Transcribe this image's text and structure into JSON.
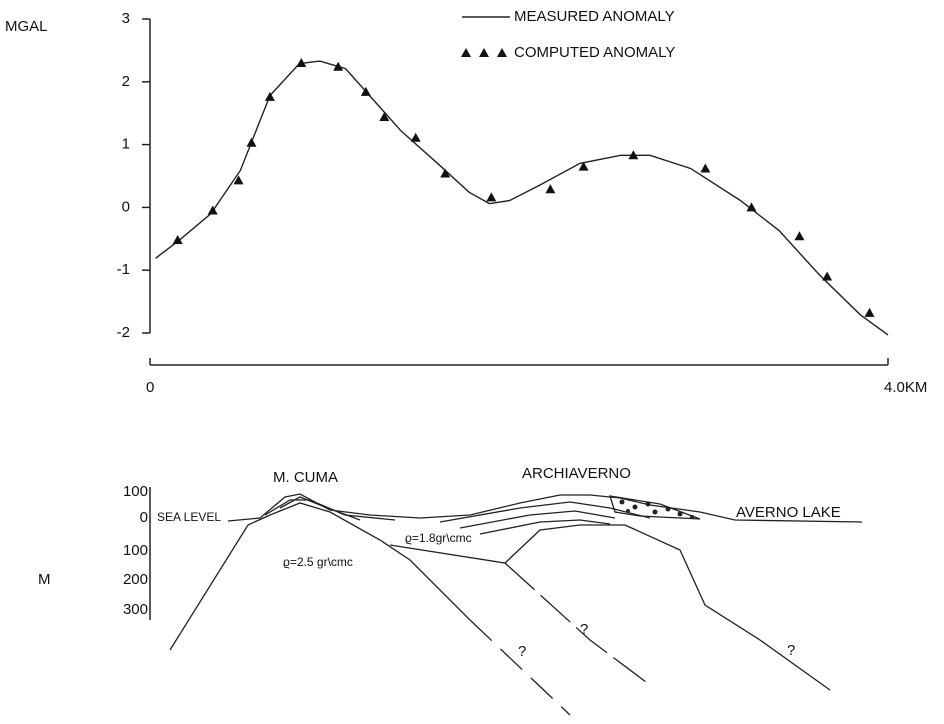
{
  "chart_data": {
    "type": "line",
    "y_label": "MGAL",
    "xlim": [
      0,
      4
    ],
    "xticks": [
      0,
      {
        "value": 4,
        "label": "4.0KM"
      }
    ],
    "ylim": [
      -2,
      3
    ],
    "yticks": [
      3,
      2,
      1,
      0,
      -1,
      -2
    ],
    "series": [
      {
        "name": "MEASURED ANOMALY",
        "color": "#222222",
        "style": "line",
        "x": [
          0.03,
          0.16,
          0.33,
          0.49,
          0.65,
          0.81,
          0.92,
          1.06,
          1.19,
          1.36,
          1.57,
          1.73,
          1.84,
          1.95,
          2.11,
          2.33,
          2.55,
          2.71,
          2.93,
          3.2,
          3.41,
          3.63,
          3.85,
          4.0
        ],
        "values": [
          -0.81,
          -0.52,
          -0.1,
          0.59,
          1.78,
          2.29,
          2.33,
          2.21,
          1.78,
          1.22,
          0.67,
          0.24,
          0.06,
          0.11,
          0.35,
          0.7,
          0.83,
          0.83,
          0.62,
          0.11,
          -0.37,
          -1.08,
          -1.71,
          -2.03
        ]
      },
      {
        "name": "COMPUTED ANOMALY",
        "color": "#111111",
        "style": "triangle",
        "x": [
          0.15,
          0.34,
          0.48,
          0.55,
          0.65,
          0.82,
          1.02,
          1.17,
          1.27,
          1.44,
          1.6,
          1.85,
          2.17,
          2.35,
          2.62,
          3.01,
          3.26,
          3.52,
          3.67,
          3.9
        ],
        "values": [
          -0.52,
          -0.05,
          0.43,
          1.03,
          1.76,
          2.3,
          2.24,
          1.84,
          1.44,
          1.11,
          0.54,
          0.16,
          0.29,
          0.65,
          0.83,
          0.62,
          0.0,
          -0.46,
          -1.1,
          -1.68
        ]
      }
    ]
  },
  "section": {
    "depth_unit": "M",
    "depth_labels": [
      "100",
      "0",
      "100",
      "200",
      "300"
    ],
    "sea_level": "SEA LEVEL",
    "places": [
      "M. CUMA",
      "ARCHIAVERNO",
      "AVERNO LAKE"
    ],
    "densities": [
      "ϱ=1.8gr\\cmc",
      "ϱ=2.5 gr\\cmc"
    ],
    "unknowns": [
      "?",
      "?",
      "?"
    ]
  }
}
